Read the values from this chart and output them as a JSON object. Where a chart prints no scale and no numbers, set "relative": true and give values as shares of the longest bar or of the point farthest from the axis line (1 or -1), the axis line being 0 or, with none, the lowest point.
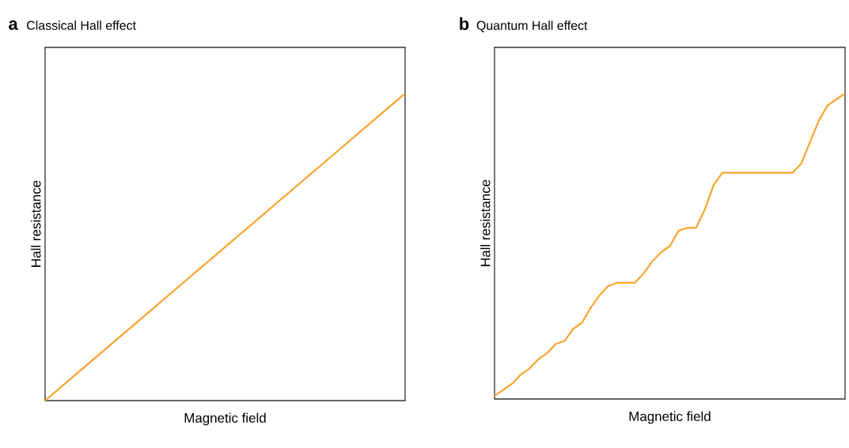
{
  "chart_data": [
    {
      "type": "line",
      "title": "Classical Hall effect",
      "annotations": [
        "a"
      ],
      "xlabel": "Magnetic field",
      "ylabel": "Hall resistance",
      "relative": true,
      "categories": [
        null,
        null,
        null,
        null,
        null,
        null,
        null,
        null,
        null,
        null,
        null
      ],
      "series": [
        {
          "color": "#f7a52c",
          "values": [
            0,
            0.1,
            0.2,
            0.3,
            0.4,
            0.5,
            0.6,
            0.7,
            0.8,
            0.9,
            1
          ]
        }
      ]
    },
    {
      "type": "line",
      "title": "Quantum Hall effect",
      "annotations": [
        "b"
      ],
      "xlabel": "Magnetic field",
      "ylabel": "Hall resistance",
      "relative": true,
      "categories": [
        null,
        null,
        null,
        null,
        null,
        null,
        null,
        null,
        null,
        null,
        null,
        null,
        null,
        null,
        null,
        null,
        null,
        null,
        null,
        null,
        null,
        null,
        null,
        null,
        null,
        null,
        null,
        null,
        null,
        null,
        null,
        null,
        null,
        null,
        null,
        null,
        null,
        null,
        null,
        null,
        null
      ],
      "series": [
        {
          "color": "#f7a52c",
          "values": [
            0.01,
            0.03,
            0.05,
            0.08,
            0.1,
            0.13,
            0.15,
            0.18,
            0.19,
            0.23,
            0.25,
            0.3,
            0.34,
            0.37,
            0.38,
            0.38,
            0.38,
            0.41,
            0.45,
            0.48,
            0.5,
            0.55,
            0.56,
            0.56,
            0.62,
            0.7,
            0.74,
            0.74,
            0.74,
            0.74,
            0.74,
            0.74,
            0.74,
            0.74,
            0.74,
            0.77,
            0.84,
            0.91,
            0.96,
            0.98,
            1.0
          ]
        }
      ]
    }
  ]
}
